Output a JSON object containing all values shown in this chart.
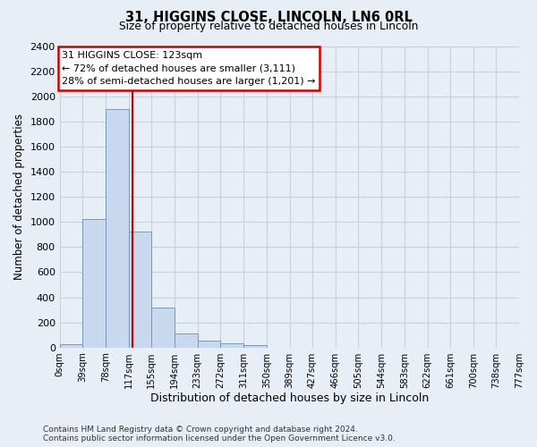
{
  "title": "31, HIGGINS CLOSE, LINCOLN, LN6 0RL",
  "subtitle": "Size of property relative to detached houses in Lincoln",
  "xlabel": "Distribution of detached houses by size in Lincoln",
  "ylabel": "Number of detached properties",
  "bar_edges": [
    0,
    39,
    78,
    117,
    155,
    194,
    233,
    272,
    311,
    350,
    389,
    427,
    466,
    505,
    544,
    583,
    622,
    661,
    700,
    738,
    777
  ],
  "bar_heights": [
    25,
    1020,
    1900,
    920,
    320,
    110,
    55,
    30,
    20,
    0,
    0,
    0,
    0,
    0,
    0,
    0,
    0,
    0,
    0,
    0
  ],
  "bar_color": "#c8d8ee",
  "bar_edgecolor": "#7799bb",
  "bar_linewidth": 0.7,
  "vline_x": 123,
  "vline_color": "#cc0000",
  "ylim": [
    0,
    2400
  ],
  "yticks": [
    0,
    200,
    400,
    600,
    800,
    1000,
    1200,
    1400,
    1600,
    1800,
    2000,
    2200,
    2400
  ],
  "xtick_labels": [
    "0sqm",
    "39sqm",
    "78sqm",
    "117sqm",
    "155sqm",
    "194sqm",
    "233sqm",
    "272sqm",
    "311sqm",
    "350sqm",
    "389sqm",
    "427sqm",
    "466sqm",
    "505sqm",
    "544sqm",
    "583sqm",
    "622sqm",
    "661sqm",
    "700sqm",
    "738sqm",
    "777sqm"
  ],
  "annotation_title": "31 HIGGINS CLOSE: 123sqm",
  "annotation_line1": "← 72% of detached houses are smaller (3,111)",
  "annotation_line2": "28% of semi-detached houses are larger (1,201) →",
  "annotation_box_color": "#ffffff",
  "annotation_box_edgecolor": "#cc0000",
  "grid_color": "#c8d0dc",
  "background_color": "#e8eef5",
  "plot_bg_color": "#e8eef5",
  "footnote1": "Contains HM Land Registry data © Crown copyright and database right 2024.",
  "footnote2": "Contains public sector information licensed under the Open Government Licence v3.0."
}
